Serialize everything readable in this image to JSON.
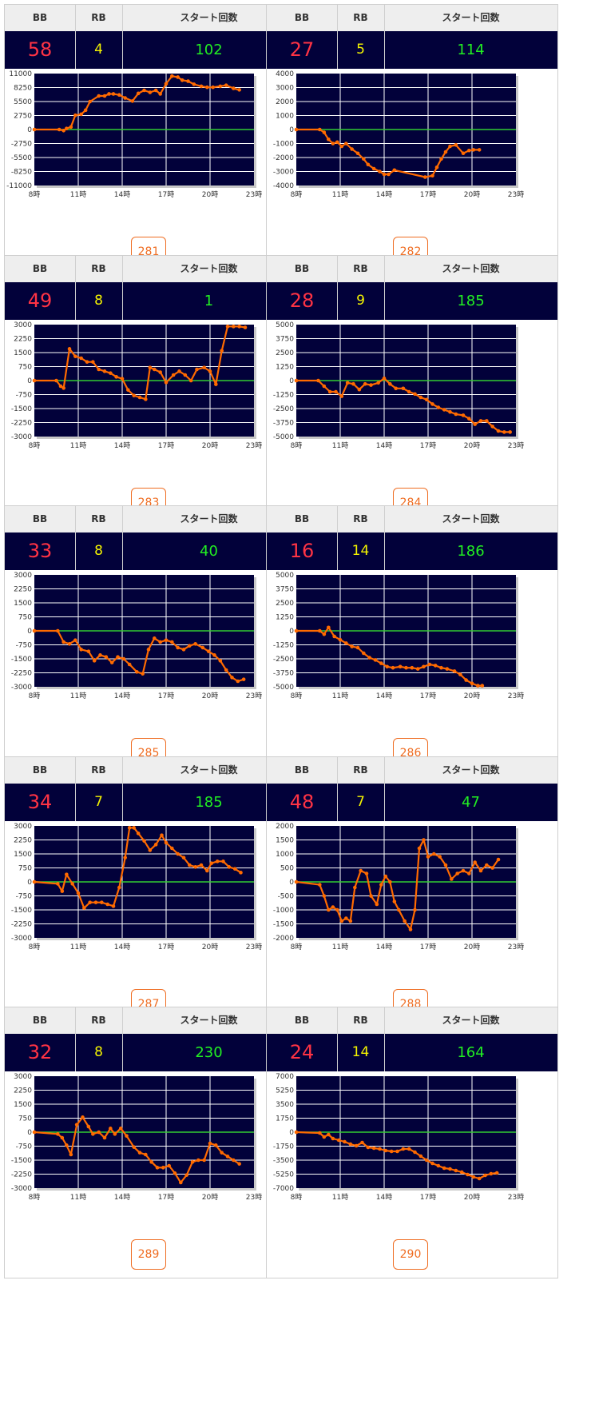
{
  "headers": {
    "bb": "BB",
    "rb": "RB",
    "start": "スタート回数"
  },
  "colors": {
    "bb": "#ff3344",
    "rb": "#f4f400",
    "start": "#22ee22",
    "line": "#ff6a00",
    "zero": "#33cc33",
    "plot_bg": "#02013a"
  },
  "machines": [
    {
      "id": "281",
      "bb": "58",
      "rb": "4",
      "start": "102"
    },
    {
      "id": "282",
      "bb": "27",
      "rb": "5",
      "start": "114"
    },
    {
      "id": "283",
      "bb": "49",
      "rb": "8",
      "start": "1"
    },
    {
      "id": "284",
      "bb": "28",
      "rb": "9",
      "start": "185"
    },
    {
      "id": "285",
      "bb": "33",
      "rb": "8",
      "start": "40"
    },
    {
      "id": "286",
      "bb": "16",
      "rb": "14",
      "start": "186"
    },
    {
      "id": "287",
      "bb": "34",
      "rb": "7",
      "start": "185"
    },
    {
      "id": "288",
      "bb": "48",
      "rb": "7",
      "start": "47"
    },
    {
      "id": "289",
      "bb": "32",
      "rb": "8",
      "start": "230"
    },
    {
      "id": "290",
      "bb": "24",
      "rb": "14",
      "start": "164"
    }
  ],
  "chart_data": [
    {
      "type": "line",
      "machine": "281",
      "x_ticks": [
        "8時",
        "11時",
        "14時",
        "17時",
        "20時",
        "23時"
      ],
      "xlim": [
        8,
        23
      ],
      "y_ticks": [
        11000,
        8250,
        5500,
        2750,
        0,
        -2750,
        -5500,
        -8250,
        -11000
      ],
      "ylim": [
        -11000,
        11000
      ],
      "series": [
        {
          "x": [
            8.0,
            9.7,
            10.0,
            10.2,
            10.5,
            10.8,
            11.2,
            11.5,
            11.8,
            12.4,
            12.8,
            13.1,
            13.4,
            13.8,
            14.2,
            14.7,
            15.1,
            15.5,
            15.9,
            16.3,
            16.6,
            17.0,
            17.4,
            17.8,
            18.1,
            18.5,
            18.9,
            19.4,
            19.8,
            20.2,
            20.7,
            21.1,
            21.6,
            22.0
          ],
          "y": [
            0,
            0,
            -200,
            200,
            500,
            2800,
            3000,
            3800,
            5500,
            6600,
            6600,
            7000,
            7000,
            6800,
            6200,
            5600,
            7100,
            7700,
            7300,
            7700,
            7000,
            9000,
            10500,
            10300,
            9700,
            9500,
            8900,
            8500,
            8300,
            8300,
            8500,
            8700,
            8100,
            7800
          ]
        }
      ]
    },
    {
      "type": "line",
      "machine": "282",
      "x_ticks": [
        "8時",
        "11時",
        "14時",
        "17時",
        "20時",
        "23時"
      ],
      "xlim": [
        8,
        23
      ],
      "y_ticks": [
        4000,
        3000,
        2000,
        1000,
        0,
        -1000,
        -2000,
        -3000,
        -4000
      ],
      "ylim": [
        -4000,
        4000
      ],
      "series": [
        {
          "x": [
            8.0,
            9.6,
            9.9,
            10.2,
            10.5,
            10.8,
            11.1,
            11.4,
            11.8,
            12.2,
            12.6,
            12.9,
            13.3,
            13.7,
            14.0,
            14.3,
            14.7,
            16.8,
            17.3,
            17.6,
            17.9,
            18.2,
            18.5,
            18.9,
            19.4,
            19.8,
            20.1,
            20.5
          ],
          "y": [
            0,
            0,
            -200,
            -700,
            -1000,
            -900,
            -1200,
            -1000,
            -1400,
            -1700,
            -2100,
            -2500,
            -2800,
            -3000,
            -3200,
            -3200,
            -2900,
            -3400,
            -3300,
            -2700,
            -2100,
            -1600,
            -1200,
            -1100,
            -1700,
            -1500,
            -1450,
            -1450
          ]
        }
      ]
    },
    {
      "type": "line",
      "machine": "283",
      "x_ticks": [
        "8時",
        "11時",
        "14時",
        "17時",
        "20時",
        "23時"
      ],
      "xlim": [
        8,
        23
      ],
      "y_ticks": [
        3000,
        2250,
        1500,
        750,
        0,
        -750,
        -1500,
        -2250,
        -3000
      ],
      "ylim": [
        -3000,
        3000
      ],
      "series": [
        {
          "x": [
            8.0,
            9.5,
            9.8,
            10.0,
            10.4,
            10.8,
            11.2,
            11.6,
            12.0,
            12.4,
            12.8,
            13.2,
            13.6,
            14.0,
            14.4,
            14.8,
            15.2,
            15.6,
            15.9,
            16.2,
            16.6,
            17.0,
            17.5,
            17.9,
            18.3,
            18.7,
            19.1,
            19.6,
            20.0,
            20.4,
            20.8,
            21.2,
            21.6,
            22.0,
            22.4
          ],
          "y": [
            0,
            0,
            -300,
            -400,
            1700,
            1300,
            1200,
            1000,
            1000,
            600,
            500,
            400,
            200,
            100,
            -500,
            -800,
            -900,
            -1000,
            700,
            600,
            450,
            -100,
            300,
            500,
            300,
            0,
            600,
            700,
            500,
            -200,
            1600,
            2900,
            2900,
            2900,
            2850
          ]
        }
      ]
    },
    {
      "type": "line",
      "machine": "284",
      "x_ticks": [
        "8時",
        "11時",
        "14時",
        "17時",
        "20時",
        "23時"
      ],
      "xlim": [
        8,
        23
      ],
      "y_ticks": [
        5000,
        3750,
        2500,
        1250,
        0,
        -1250,
        -2500,
        -3750,
        -5000
      ],
      "ylim": [
        -5000,
        5000
      ],
      "series": [
        {
          "x": [
            8.0,
            9.5,
            9.9,
            10.3,
            10.7,
            11.1,
            11.5,
            11.9,
            12.3,
            12.7,
            13.1,
            13.6,
            14.0,
            14.4,
            14.8,
            15.3,
            15.7,
            16.1,
            16.5,
            16.9,
            17.3,
            17.7,
            18.1,
            18.5,
            18.9,
            19.4,
            19.8,
            20.2,
            20.6,
            21.0,
            21.4,
            21.8,
            22.2,
            22.6
          ],
          "y": [
            0,
            0,
            -500,
            -1000,
            -1000,
            -1400,
            -200,
            -300,
            -800,
            -300,
            -400,
            -200,
            200,
            -300,
            -700,
            -700,
            -1000,
            -1200,
            -1500,
            -1700,
            -2100,
            -2400,
            -2600,
            -2800,
            -3000,
            -3100,
            -3400,
            -3900,
            -3600,
            -3600,
            -4100,
            -4500,
            -4600,
            -4600
          ]
        }
      ]
    },
    {
      "type": "line",
      "machine": "285",
      "x_ticks": [
        "8時",
        "11時",
        "14時",
        "17時",
        "20時",
        "23時"
      ],
      "xlim": [
        8,
        23
      ],
      "y_ticks": [
        3000,
        2250,
        1500,
        750,
        0,
        -750,
        -1500,
        -2250,
        -3000
      ],
      "ylim": [
        -3000,
        3000
      ],
      "series": [
        {
          "x": [
            8.0,
            9.6,
            10.0,
            10.4,
            10.8,
            11.2,
            11.7,
            12.1,
            12.5,
            12.9,
            13.3,
            13.7,
            14.1,
            14.5,
            15.0,
            15.4,
            15.8,
            16.2,
            16.6,
            17.0,
            17.4,
            17.8,
            18.2,
            18.6,
            19.0,
            19.5,
            19.9,
            20.3,
            20.7,
            21.1,
            21.5,
            21.9,
            22.3
          ],
          "y": [
            0,
            0,
            -600,
            -700,
            -500,
            -1000,
            -1100,
            -1600,
            -1300,
            -1400,
            -1700,
            -1400,
            -1500,
            -1800,
            -2200,
            -2300,
            -1000,
            -400,
            -600,
            -500,
            -600,
            -900,
            -1000,
            -800,
            -700,
            -900,
            -1100,
            -1300,
            -1600,
            -2100,
            -2500,
            -2700,
            -2600
          ]
        }
      ]
    },
    {
      "type": "line",
      "machine": "286",
      "x_ticks": [
        "8時",
        "11時",
        "14時",
        "17時",
        "20時",
        "23時"
      ],
      "xlim": [
        8,
        23
      ],
      "y_ticks": [
        5000,
        3750,
        2500,
        1250,
        0,
        -1250,
        -2500,
        -3750,
        -5000
      ],
      "ylim": [
        -5000,
        5000
      ],
      "series": [
        {
          "x": [
            8.0,
            9.6,
            9.9,
            10.2,
            10.6,
            11.0,
            11.4,
            11.8,
            12.2,
            12.6,
            13.0,
            13.4,
            13.8,
            14.2,
            14.6,
            15.1,
            15.5,
            15.9,
            16.3,
            16.7,
            17.1,
            17.5,
            17.9,
            18.3,
            18.8,
            19.2,
            19.6,
            20.0,
            20.4,
            20.7
          ],
          "y": [
            0,
            0,
            -300,
            300,
            -500,
            -800,
            -1100,
            -1400,
            -1500,
            -2000,
            -2400,
            -2600,
            -2900,
            -3200,
            -3300,
            -3200,
            -3300,
            -3300,
            -3400,
            -3200,
            -3000,
            -3100,
            -3300,
            -3400,
            -3600,
            -3900,
            -4400,
            -4700,
            -4900,
            -4900
          ]
        }
      ]
    },
    {
      "type": "line",
      "machine": "287",
      "x_ticks": [
        "8時",
        "11時",
        "14時",
        "17時",
        "20時",
        "23時"
      ],
      "xlim": [
        8,
        23
      ],
      "y_ticks": [
        3000,
        2250,
        1500,
        750,
        0,
        -750,
        -1500,
        -2250,
        -3000
      ],
      "ylim": [
        -3000,
        3000
      ],
      "series": [
        {
          "x": [
            8.0,
            9.6,
            9.9,
            10.2,
            10.6,
            11.0,
            11.4,
            11.8,
            12.2,
            12.6,
            13.0,
            13.4,
            13.8,
            14.2,
            14.5,
            14.8,
            15.1,
            15.5,
            15.9,
            16.3,
            16.7,
            17.0,
            17.4,
            17.8,
            18.2,
            18.6,
            19.0,
            19.4,
            19.8,
            20.1,
            20.5,
            20.9,
            21.3,
            21.7,
            22.1
          ],
          "y": [
            0,
            -100,
            -500,
            400,
            -100,
            -600,
            -1400,
            -1100,
            -1100,
            -1100,
            -1200,
            -1300,
            -300,
            1300,
            2900,
            2900,
            2600,
            2200,
            1700,
            2000,
            2500,
            2100,
            1800,
            1500,
            1300,
            900,
            800,
            900,
            600,
            1000,
            1100,
            1100,
            800,
            700,
            500
          ]
        }
      ]
    },
    {
      "type": "line",
      "machine": "288",
      "x_ticks": [
        "8時",
        "11時",
        "14時",
        "17時",
        "20時",
        "23時"
      ],
      "xlim": [
        8,
        23
      ],
      "y_ticks": [
        2000,
        1500,
        1000,
        500,
        0,
        -500,
        -1000,
        -1500,
        -2000
      ],
      "ylim": [
        -2000,
        2000
      ],
      "series": [
        {
          "x": [
            8.0,
            9.6,
            9.9,
            10.2,
            10.5,
            10.8,
            11.1,
            11.4,
            11.7,
            12.0,
            12.4,
            12.8,
            13.1,
            13.5,
            13.8,
            14.1,
            14.4,
            14.7,
            15.0,
            15.4,
            15.8,
            16.1,
            16.4,
            16.7,
            17.0,
            17.4,
            17.8,
            18.2,
            18.6,
            19.0,
            19.4,
            19.8,
            20.2,
            20.6,
            21.0,
            21.4,
            21.8
          ],
          "y": [
            0,
            -100,
            -500,
            -1000,
            -900,
            -1000,
            -1400,
            -1300,
            -1400,
            -200,
            400,
            300,
            -500,
            -800,
            -100,
            200,
            0,
            -700,
            -1000,
            -1400,
            -1700,
            -1000,
            1200,
            1500,
            900,
            1000,
            900,
            600,
            100,
            300,
            400,
            300,
            700,
            400,
            600,
            500,
            800
          ]
        }
      ]
    },
    {
      "type": "line",
      "machine": "289",
      "x_ticks": [
        "8時",
        "11時",
        "14時",
        "17時",
        "20時",
        "23時"
      ],
      "xlim": [
        8,
        23
      ],
      "y_ticks": [
        3000,
        2250,
        1500,
        750,
        0,
        -750,
        -1500,
        -2250,
        -3000
      ],
      "ylim": [
        -3000,
        3000
      ],
      "series": [
        {
          "x": [
            8.0,
            9.6,
            9.9,
            10.2,
            10.5,
            10.9,
            11.3,
            11.7,
            12.0,
            12.4,
            12.8,
            13.2,
            13.5,
            13.9,
            14.3,
            14.8,
            15.2,
            15.6,
            16.0,
            16.4,
            16.8,
            17.2,
            17.6,
            18.0,
            18.4,
            18.8,
            19.2,
            19.6,
            20.0,
            20.4,
            20.8,
            21.2,
            21.6,
            22.0
          ],
          "y": [
            0,
            -100,
            -300,
            -700,
            -1200,
            400,
            800,
            300,
            -100,
            0,
            -300,
            200,
            -100,
            200,
            -200,
            -800,
            -1100,
            -1200,
            -1600,
            -1900,
            -1900,
            -1800,
            -2200,
            -2700,
            -2300,
            -1600,
            -1500,
            -1500,
            -600,
            -700,
            -1100,
            -1300,
            -1500,
            -1700
          ]
        }
      ]
    },
    {
      "type": "line",
      "machine": "290",
      "x_ticks": [
        "8時",
        "11時",
        "14時",
        "17時",
        "20時",
        "23時"
      ],
      "xlim": [
        8,
        23
      ],
      "y_ticks": [
        7000,
        5250,
        3500,
        1750,
        0,
        -1750,
        -3500,
        -5250,
        -7000
      ],
      "ylim": [
        -7000,
        7000
      ],
      "series": [
        {
          "x": [
            8.0,
            9.6,
            9.9,
            10.2,
            10.5,
            10.9,
            11.3,
            11.7,
            12.1,
            12.5,
            12.9,
            13.3,
            13.7,
            14.1,
            14.5,
            14.9,
            15.3,
            15.7,
            16.1,
            16.5,
            16.9,
            17.3,
            17.7,
            18.1,
            18.5,
            18.9,
            19.3,
            19.7,
            20.1,
            20.5,
            20.9,
            21.3,
            21.7
          ],
          "y": [
            0,
            -100,
            -600,
            -300,
            -800,
            -1000,
            -1200,
            -1500,
            -1700,
            -1300,
            -1900,
            -2000,
            -2100,
            -2300,
            -2400,
            -2400,
            -2100,
            -2100,
            -2500,
            -3000,
            -3500,
            -3900,
            -4200,
            -4500,
            -4600,
            -4800,
            -5000,
            -5300,
            -5600,
            -5800,
            -5400,
            -5200,
            -5100
          ]
        }
      ]
    }
  ]
}
